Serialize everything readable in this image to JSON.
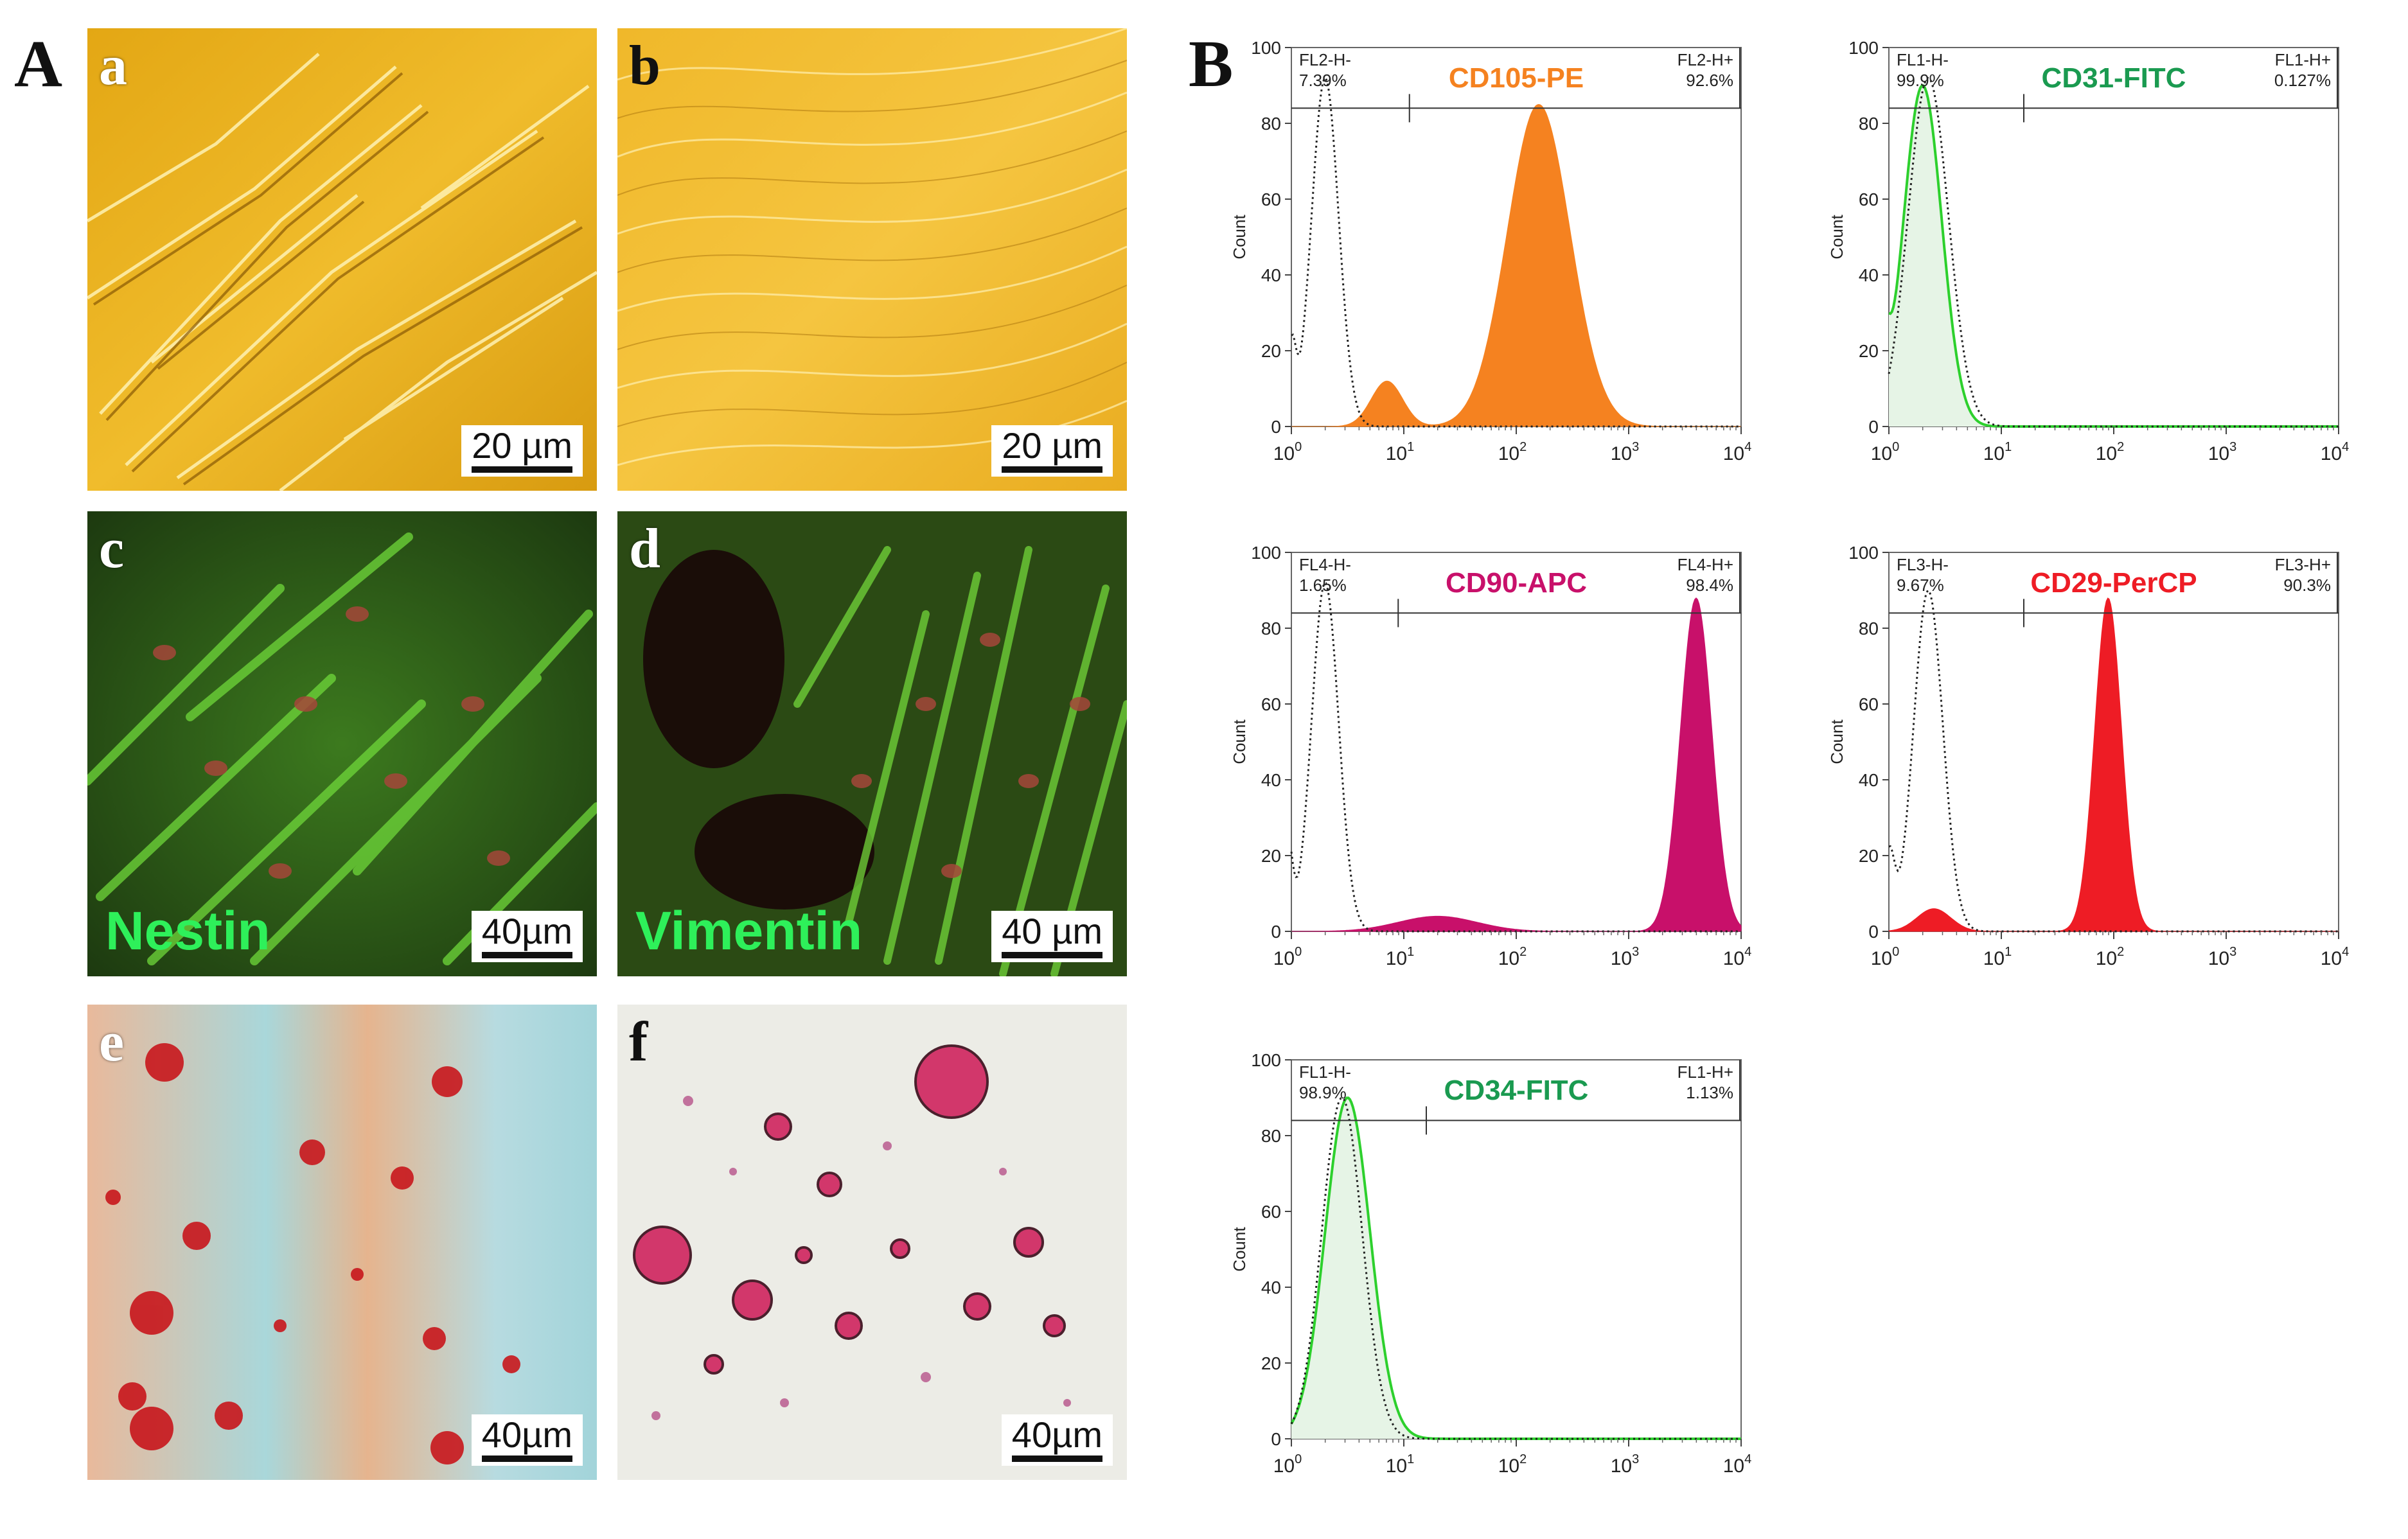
{
  "panel_A_label": "A",
  "panel_B_label": "B",
  "images": [
    {
      "label": "a",
      "scale": "20 µm"
    },
    {
      "label": "b",
      "scale": "20 µm"
    },
    {
      "label": "c",
      "scale": "40µm",
      "stain": "Nestin"
    },
    {
      "label": "d",
      "scale": "40 µm",
      "stain": "Vimentin"
    },
    {
      "label": "e",
      "scale": "40µm"
    },
    {
      "label": "f",
      "scale": "40µm"
    }
  ],
  "chart_data": [
    {
      "type": "area",
      "title": "CD105-PE",
      "color": "#f58220",
      "left_gate_label": "FL2-H-",
      "left_gate_pct": "7.39%",
      "right_gate_label": "FL2-H+",
      "right_gate_pct": "92.6%",
      "ylabel": "Count",
      "ylim": [
        0,
        100
      ],
      "xlim_log10": [
        0,
        4
      ],
      "yticks": [
        "0",
        "20",
        "40",
        "60",
        "80",
        "100"
      ],
      "xticks": [
        "10^0",
        "10^1",
        "10^2",
        "10^3",
        "10^4"
      ],
      "sample_outline": false,
      "positive_fraction": 0.926
    },
    {
      "type": "area",
      "title": "CD31-FITC",
      "color": "#1a9a50",
      "left_gate_label": "FL1-H-",
      "left_gate_pct": "99.9%",
      "right_gate_label": "FL1-H+",
      "right_gate_pct": "0.127%",
      "ylabel": "Count",
      "ylim": [
        0,
        100
      ],
      "xlim_log10": [
        0,
        4
      ],
      "yticks": [
        "0",
        "20",
        "40",
        "60",
        "80",
        "100"
      ],
      "xticks": [
        "10^0",
        "10^1",
        "10^2",
        "10^3",
        "10^4"
      ],
      "sample_outline": true,
      "positive_fraction": 0.00127
    },
    {
      "type": "area",
      "title": "CD90-APC",
      "color": "#c8106a",
      "left_gate_label": "FL4-H-",
      "left_gate_pct": "1.65%",
      "right_gate_label": "FL4-H+",
      "right_gate_pct": "98.4%",
      "ylabel": "Count",
      "ylim": [
        0,
        100
      ],
      "xlim_log10": [
        0,
        4
      ],
      "yticks": [
        "0",
        "20",
        "40",
        "60",
        "80",
        "100"
      ],
      "xticks": [
        "10^0",
        "10^1",
        "10^2",
        "10^3",
        "10^4"
      ],
      "sample_outline": false,
      "positive_fraction": 0.984
    },
    {
      "type": "area",
      "title": "CD29-PerCP",
      "color": "#ee1c25",
      "left_gate_label": "FL3-H-",
      "left_gate_pct": "9.67%",
      "right_gate_label": "FL3-H+",
      "right_gate_pct": "90.3%",
      "ylabel": "Count",
      "ylim": [
        0,
        100
      ],
      "xlim_log10": [
        0,
        4
      ],
      "yticks": [
        "0",
        "20",
        "40",
        "60",
        "80",
        "100"
      ],
      "xticks": [
        "10^0",
        "10^1",
        "10^2",
        "10^3",
        "10^4"
      ],
      "sample_outline": false,
      "positive_fraction": 0.903
    },
    {
      "type": "area",
      "title": "CD34-FITC",
      "color": "#1a9a50",
      "left_gate_label": "FL1-H-",
      "left_gate_pct": "98.9%",
      "right_gate_label": "FL1-H+",
      "right_gate_pct": "1.13%",
      "ylabel": "Count",
      "ylim": [
        0,
        100
      ],
      "xlim_log10": [
        0,
        4
      ],
      "yticks": [
        "0",
        "20",
        "40",
        "60",
        "80",
        "100"
      ],
      "xticks": [
        "10^0",
        "10^1",
        "10^2",
        "10^3",
        "10^4"
      ],
      "sample_outline": true,
      "positive_fraction": 0.0113
    }
  ]
}
